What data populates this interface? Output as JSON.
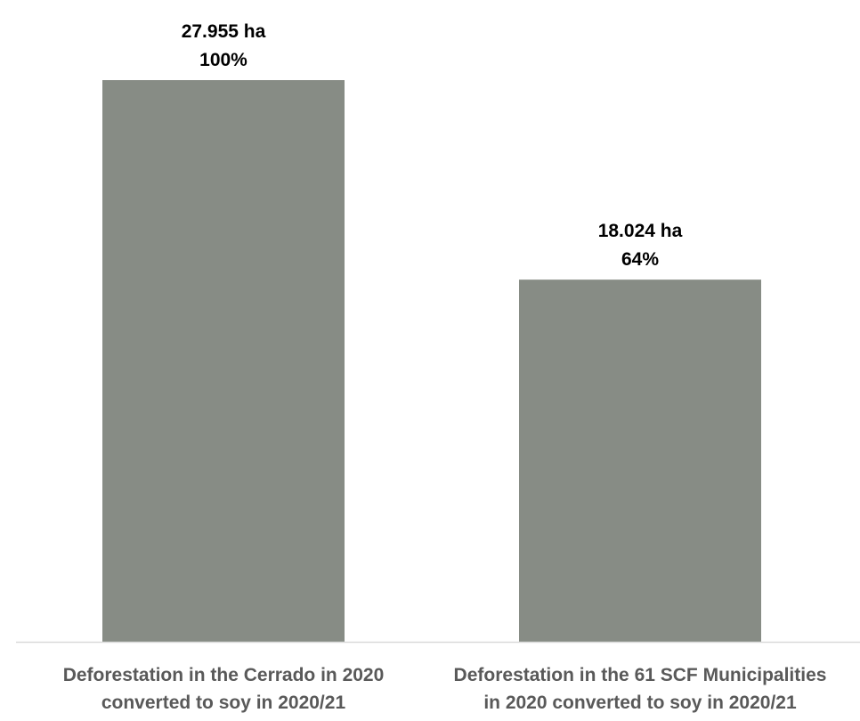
{
  "colors": {
    "bar": "#878c85",
    "axis": "#d9d9d9",
    "data_label": "#000000",
    "category_label": "#595959"
  },
  "chart_data": {
    "type": "bar",
    "title": "",
    "xlabel": "",
    "ylabel": "",
    "ylim": [
      0,
      27955
    ],
    "grid": false,
    "legend": "none",
    "categories": [
      [
        "Deforestation in the Cerrado in 2020",
        "converted to soy in 2020/21"
      ],
      [
        "Deforestation in the 61 SCF Municipalities",
        "in 2020 converted to soy in 2020/21"
      ]
    ],
    "values": [
      27955,
      18024
    ],
    "data_labels": [
      [
        "27.955 ha",
        "100%"
      ],
      [
        "18.024 ha",
        "64%"
      ]
    ],
    "percentages": [
      100,
      64
    ]
  }
}
